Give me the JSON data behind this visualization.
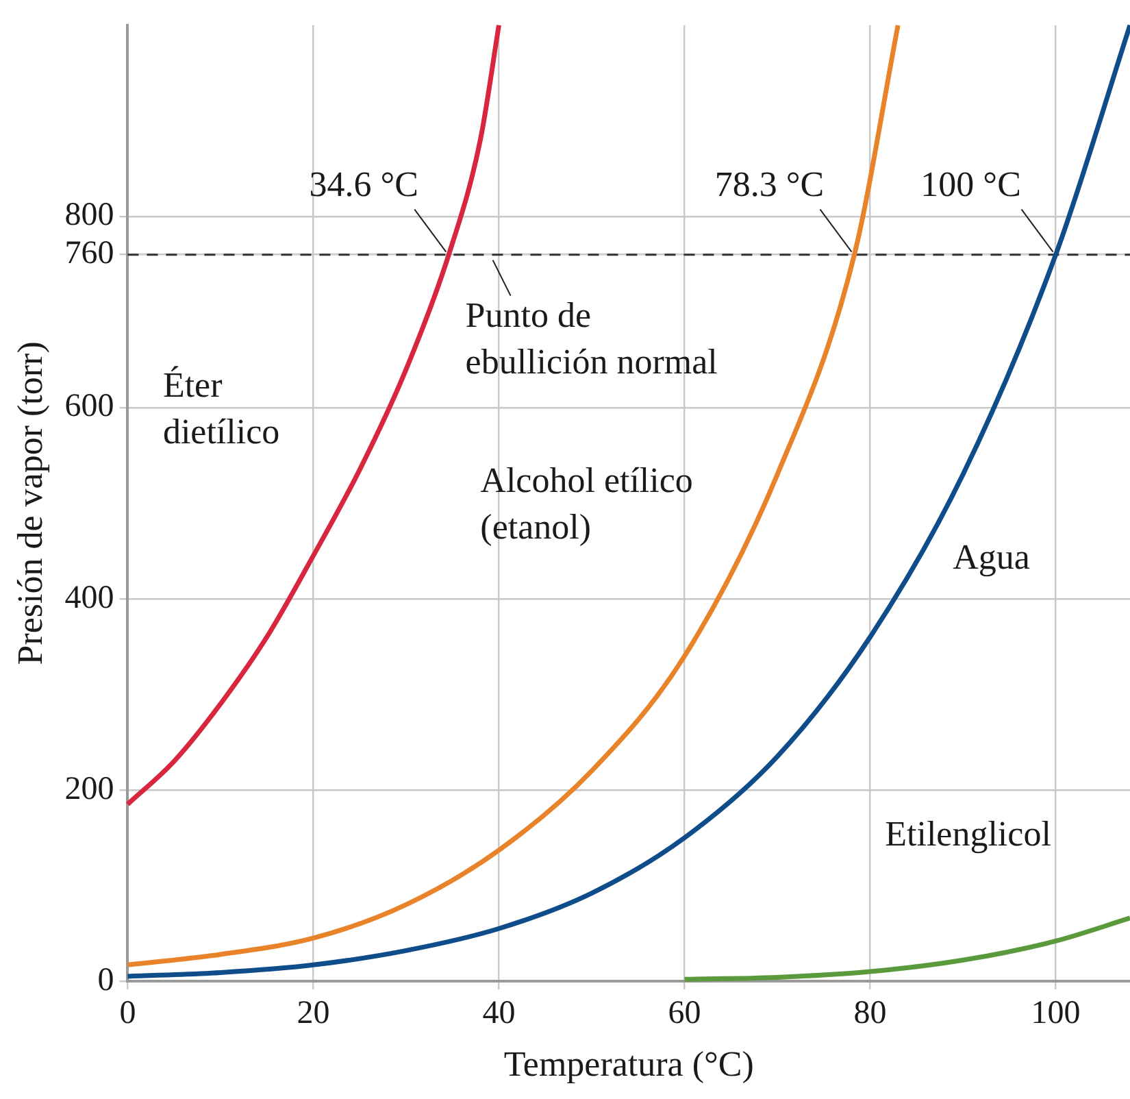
{
  "chart_data": {
    "type": "line",
    "xlabel": "Temperatura (°C)",
    "ylabel": "Presión de vapor (torr)",
    "xlim": [
      0,
      108
    ],
    "ylim": [
      0,
      1000
    ],
    "xticks": [
      0,
      20,
      40,
      60,
      80,
      100
    ],
    "yticks": [
      0,
      200,
      400,
      600,
      760,
      800
    ],
    "grid": true,
    "legend": false,
    "marker": "none",
    "line_style": "solid",
    "series": [
      {
        "name": "Éter dietílico",
        "color": "#d7263d",
        "x": [
          0,
          5,
          10,
          15,
          20,
          25,
          30,
          34.6,
          38,
          40
        ],
        "values": [
          185,
          230,
          290,
          360,
          445,
          535,
          640,
          760,
          880,
          1000
        ]
      },
      {
        "name": "Alcohol etílico (etanol)",
        "color": "#e8832a",
        "x": [
          0,
          10,
          20,
          30,
          40,
          50,
          60,
          70,
          78.3,
          83
        ],
        "values": [
          17,
          28,
          45,
          80,
          137,
          220,
          340,
          530,
          760,
          1000
        ]
      },
      {
        "name": "Agua",
        "color": "#0f4c8a",
        "x": [
          0,
          10,
          20,
          30,
          40,
          50,
          60,
          70,
          80,
          90,
          100,
          108
        ],
        "values": [
          5,
          9,
          17,
          32,
          55,
          92,
          150,
          235,
          360,
          530,
          760,
          1000
        ]
      },
      {
        "name": "Etilenglicol",
        "color": "#5a9a3c",
        "x": [
          60,
          70,
          80,
          90,
          100,
          108
        ],
        "values": [
          2,
          4,
          10,
          22,
          42,
          66
        ]
      }
    ],
    "ref_lines": [
      {
        "axis": "y",
        "value": 760,
        "color": "#333333",
        "line_style": "dashed"
      }
    ],
    "annotations": [
      {
        "text": "34.6 °C",
        "x": 34.6,
        "y": 760
      },
      {
        "text": "78.3 °C",
        "x": 78.3,
        "y": 760
      },
      {
        "text": "100 °C",
        "x": 100,
        "y": 760
      },
      {
        "text": "Punto de ebullición normal",
        "x": 42,
        "y": 760
      }
    ]
  }
}
